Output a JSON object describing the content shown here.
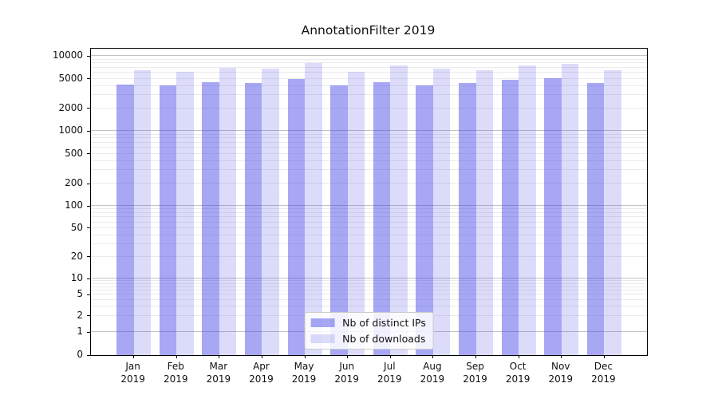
{
  "title": "AnnotationFilter 2019",
  "colors": {
    "ips_bar": "rgba(60,60,230,0.45)",
    "downloads_bar": "rgba(60,60,230,0.18)",
    "ips_bar_solid": "#a7a7f4",
    "downloads_bar_solid": "#dcdcf9",
    "major_grid": "#c3c3c3",
    "minor_grid": "#ebebeb",
    "axis": "#000000"
  },
  "legend": {
    "entries": [
      {
        "label": "Nb of distinct IPs",
        "series": "ips"
      },
      {
        "label": "Nb of downloads",
        "series": "downloads"
      }
    ]
  },
  "chart_data": {
    "type": "bar",
    "title": "AnnotationFilter 2019",
    "categories": [
      "Jan 2019",
      "Feb 2019",
      "Mar 2019",
      "Apr 2019",
      "May 2019",
      "Jun 2019",
      "Jul 2019",
      "Aug 2019",
      "Sep 2019",
      "Oct 2019",
      "Nov 2019",
      "Dec 2019"
    ],
    "x_tick_line1": [
      "Jan",
      "Feb",
      "Mar",
      "Apr",
      "May",
      "Jun",
      "Jul",
      "Aug",
      "Sep",
      "Oct",
      "Nov",
      "Dec"
    ],
    "x_tick_line2": "2019",
    "series": [
      {
        "name": "Nb of distinct IPs",
        "values": [
          4200,
          4050,
          4500,
          4400,
          4900,
          4050,
          4450,
          4050,
          4350,
          4800,
          5100,
          4350
        ]
      },
      {
        "name": "Nb of downloads",
        "values": [
          6500,
          6200,
          7000,
          6800,
          8100,
          6100,
          7550,
          6800,
          6500,
          7550,
          7850,
          6450
        ]
      }
    ],
    "xlabel": "",
    "ylabel": "",
    "yscale": "symlog",
    "yticks": [
      0,
      1,
      2,
      5,
      10,
      20,
      50,
      100,
      200,
      500,
      1000,
      2000,
      5000,
      10000
    ],
    "ylim": [
      0,
      12500
    ],
    "grid": true,
    "legend_position": "lower center"
  }
}
